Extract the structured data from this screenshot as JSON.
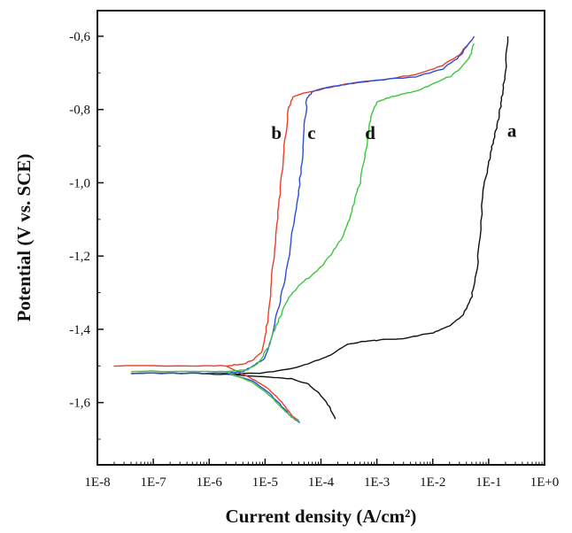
{
  "chart_data": {
    "type": "line",
    "title": "",
    "xlabel": "Current density (A/cm²)",
    "ylabel": "Potential (V vs. SCE)",
    "xscale": "log",
    "xlim": [
      1e-08,
      1
    ],
    "ylim": [
      -1.77,
      -0.53
    ],
    "x_ticks": [
      1e-08,
      1e-07,
      1e-06,
      1e-05,
      0.0001,
      0.001,
      0.01,
      0.1,
      1
    ],
    "x_tick_labels": [
      "1E-8",
      "1E-7",
      "1E-6",
      "1E-5",
      "1E-4",
      "1E-3",
      "1E-2",
      "1E-1",
      "1E+0"
    ],
    "y_ticks": [
      -1.6,
      -1.4,
      -1.2,
      -1.0,
      -0.8,
      -0.6
    ],
    "y_tick_labels": [
      "-1,6",
      "-1,4",
      "-1,2",
      "-1,0",
      "-0,8",
      "-0,6"
    ],
    "grid": false,
    "legend": "none",
    "series": [
      {
        "name": "a",
        "color": "#111111",
        "points": [
          [
            4e-08,
            -1.52
          ],
          [
            5e-07,
            -1.52
          ],
          [
            2e-06,
            -1.523
          ],
          [
            8e-06,
            -1.52
          ],
          [
            2.5e-05,
            -1.51
          ],
          [
            7e-05,
            -1.49
          ],
          [
            0.00015,
            -1.47
          ],
          [
            0.0003,
            -1.44
          ],
          [
            0.0005,
            -1.435
          ],
          [
            0.001,
            -1.43
          ],
          [
            0.003,
            -1.425
          ],
          [
            0.01,
            -1.41
          ],
          [
            0.02,
            -1.39
          ],
          [
            0.035,
            -1.36
          ],
          [
            0.05,
            -1.31
          ],
          [
            0.06,
            -1.25
          ],
          [
            0.07,
            -1.15
          ],
          [
            0.08,
            -1.02
          ],
          [
            0.1,
            -0.95
          ],
          [
            0.115,
            -0.9
          ],
          [
            0.14,
            -0.85
          ],
          [
            0.16,
            -0.8
          ],
          [
            0.18,
            -0.75
          ],
          [
            0.2,
            -0.7
          ],
          [
            0.22,
            -0.6
          ]
        ],
        "cathodic_points": [
          [
            2e-06,
            -1.523
          ],
          [
            1e-05,
            -1.53
          ],
          [
            3e-05,
            -1.535
          ],
          [
            6e-05,
            -1.55
          ],
          [
            0.0001,
            -1.58
          ],
          [
            0.00014,
            -1.61
          ],
          [
            0.00018,
            -1.645
          ]
        ]
      },
      {
        "name": "b",
        "color": "#e8402a",
        "points": [
          [
            2e-08,
            -1.5
          ],
          [
            5e-07,
            -1.5
          ],
          [
            2e-06,
            -1.5
          ],
          [
            4e-06,
            -1.495
          ],
          [
            6e-06,
            -1.485
          ],
          [
            9e-06,
            -1.46
          ],
          [
            1.1e-05,
            -1.38
          ],
          [
            1.3e-05,
            -1.27
          ],
          [
            1.5e-05,
            -1.18
          ],
          [
            1.7e-05,
            -1.08
          ],
          [
            2e-05,
            -0.98
          ],
          [
            2.3e-05,
            -0.88
          ],
          [
            2.6e-05,
            -0.8
          ],
          [
            3.2e-05,
            -0.765
          ],
          [
            5e-05,
            -0.755
          ],
          [
            0.0001,
            -0.745
          ],
          [
            0.0003,
            -0.73
          ],
          [
            0.001,
            -0.72
          ],
          [
            0.005,
            -0.705
          ],
          [
            0.015,
            -0.68
          ],
          [
            0.03,
            -0.65
          ],
          [
            0.05,
            -0.61
          ]
        ],
        "cathodic_points": [
          [
            2e-06,
            -1.5
          ],
          [
            6e-06,
            -1.535
          ],
          [
            1.2e-05,
            -1.565
          ],
          [
            2e-05,
            -1.6
          ],
          [
            3e-05,
            -1.635
          ],
          [
            4e-05,
            -1.65
          ]
        ]
      },
      {
        "name": "c",
        "color": "#2b4fd8",
        "points": [
          [
            4e-08,
            -1.52
          ],
          [
            5e-07,
            -1.52
          ],
          [
            2e-06,
            -1.52
          ],
          [
            4e-06,
            -1.515
          ],
          [
            6e-06,
            -1.5
          ],
          [
            1e-05,
            -1.48
          ],
          [
            1.3e-05,
            -1.42
          ],
          [
            1.7e-05,
            -1.35
          ],
          [
            2.2e-05,
            -1.27
          ],
          [
            2.8e-05,
            -1.18
          ],
          [
            3.3e-05,
            -1.1
          ],
          [
            4e-05,
            -1.02
          ],
          [
            4.6e-05,
            -0.93
          ],
          [
            5.1e-05,
            -0.84
          ],
          [
            5.6e-05,
            -0.77
          ],
          [
            7e-05,
            -0.75
          ],
          [
            0.00012,
            -0.74
          ],
          [
            0.0003,
            -0.73
          ],
          [
            0.001,
            -0.72
          ],
          [
            0.005,
            -0.71
          ],
          [
            0.015,
            -0.69
          ],
          [
            0.03,
            -0.655
          ],
          [
            0.055,
            -0.6
          ]
        ],
        "cathodic_points": [
          [
            2e-06,
            -1.52
          ],
          [
            6e-06,
            -1.54
          ],
          [
            1.2e-05,
            -1.575
          ],
          [
            2e-05,
            -1.61
          ],
          [
            3e-05,
            -1.64
          ],
          [
            4.2e-05,
            -1.655
          ]
        ]
      },
      {
        "name": "d",
        "color": "#3fc43f",
        "points": [
          [
            4e-08,
            -1.515
          ],
          [
            5e-07,
            -1.515
          ],
          [
            2e-06,
            -1.515
          ],
          [
            5e-06,
            -1.51
          ],
          [
            8e-06,
            -1.49
          ],
          [
            1.2e-05,
            -1.44
          ],
          [
            1.7e-05,
            -1.38
          ],
          [
            2.5e-05,
            -1.32
          ],
          [
            4e-05,
            -1.28
          ],
          [
            6e-05,
            -1.26
          ],
          [
            0.0001,
            -1.23
          ],
          [
            0.00016,
            -1.19
          ],
          [
            0.00024,
            -1.15
          ],
          [
            0.00032,
            -1.1
          ],
          [
            0.0004,
            -1.05
          ],
          [
            0.0005,
            -1.0
          ],
          [
            0.0006,
            -0.93
          ],
          [
            0.0007,
            -0.87
          ],
          [
            0.0008,
            -0.81
          ],
          [
            0.001,
            -0.78
          ],
          [
            0.0015,
            -0.77
          ],
          [
            0.0025,
            -0.76
          ],
          [
            0.005,
            -0.75
          ],
          [
            0.01,
            -0.73
          ],
          [
            0.02,
            -0.71
          ],
          [
            0.03,
            -0.69
          ],
          [
            0.045,
            -0.66
          ],
          [
            0.055,
            -0.62
          ]
        ],
        "cathodic_points": [
          [
            2e-06,
            -1.515
          ],
          [
            6e-06,
            -1.545
          ],
          [
            1.2e-05,
            -1.58
          ],
          [
            2e-05,
            -1.615
          ],
          [
            3e-05,
            -1.64
          ],
          [
            4e-05,
            -1.65
          ]
        ]
      }
    ],
    "annotations": [
      {
        "text": "a",
        "x": 0.26,
        "y": -0.875
      },
      {
        "text": "b",
        "x": 1.6e-05,
        "y": -0.88
      },
      {
        "text": "c",
        "x": 6.8e-05,
        "y": -0.88
      },
      {
        "text": "d",
        "x": 0.00076,
        "y": -0.88
      }
    ]
  }
}
